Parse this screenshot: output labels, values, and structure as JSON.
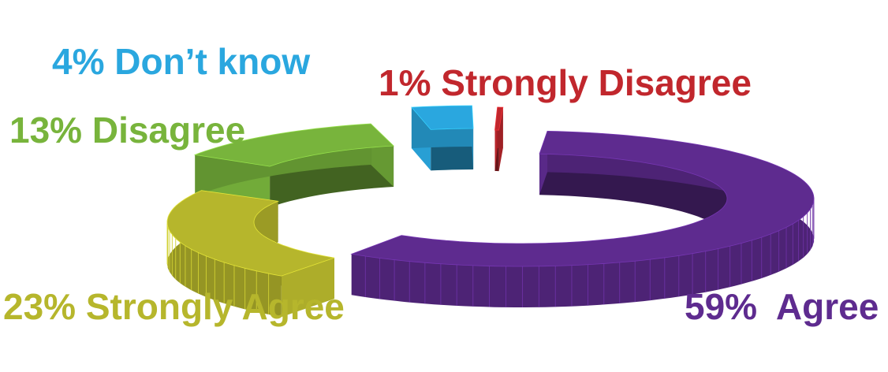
{
  "chart_data": {
    "type": "pie",
    "style": "3d-donut-exploded",
    "slices": [
      {
        "key": "agree",
        "label": "59%  Agree",
        "value": 59,
        "color": "#5e2b8f"
      },
      {
        "key": "sagree",
        "label": "23% Strongly Agree",
        "value": 23,
        "color": "#b6b62c"
      },
      {
        "key": "disagree",
        "label": "13% Disagree",
        "value": 13,
        "color": "#78b43c"
      },
      {
        "key": "dontknow",
        "label": "4% Don’t know",
        "value": 4,
        "color": "#2aa7df"
      },
      {
        "key": "sdisagree",
        "label": "1% Strongly Disagree",
        "value": 1,
        "color": "#c1272d"
      }
    ]
  }
}
